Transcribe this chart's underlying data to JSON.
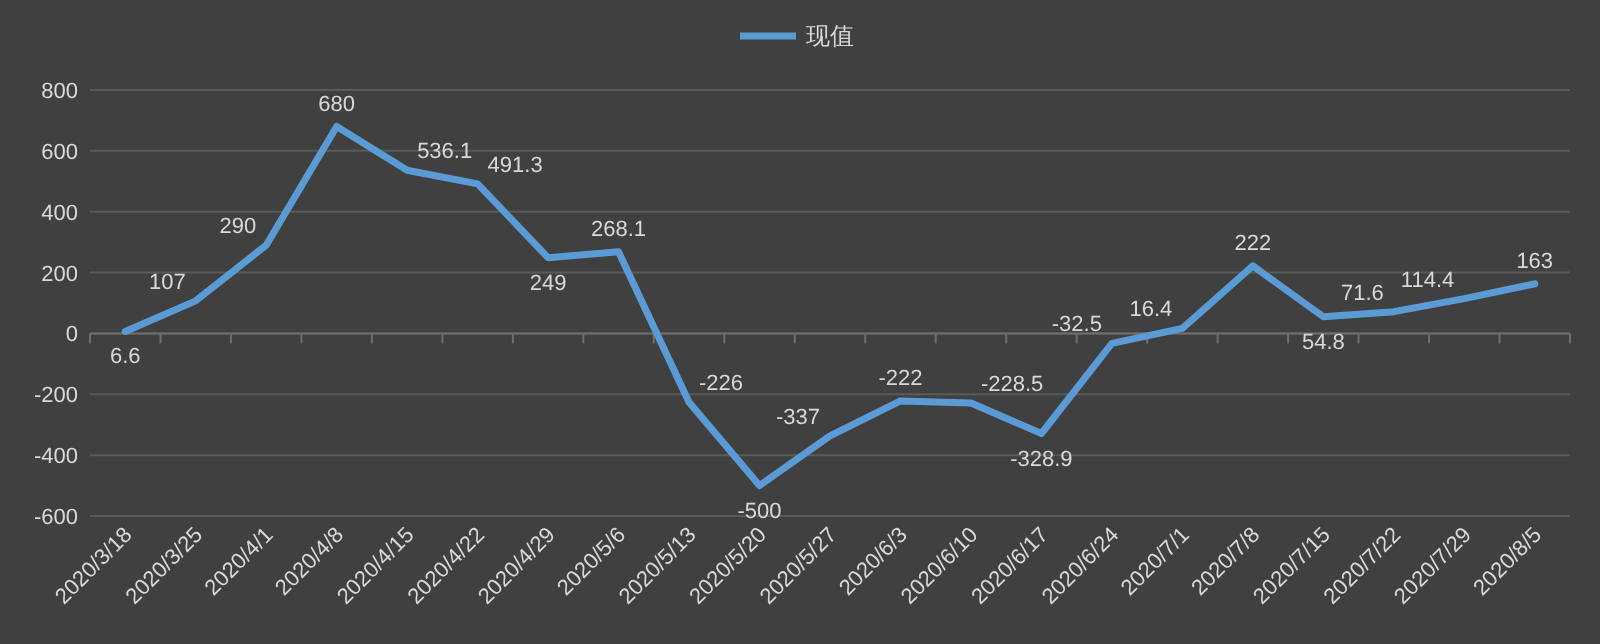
{
  "chart_data": {
    "type": "line",
    "legend": "top",
    "grid": "y",
    "data_labels": true,
    "marker": "none",
    "line_style": "solid",
    "categories": [
      "2020/3/18",
      "2020/3/25",
      "2020/4/1",
      "2020/4/8",
      "2020/4/15",
      "2020/4/22",
      "2020/4/29",
      "2020/5/6",
      "2020/5/13",
      "2020/5/20",
      "2020/5/27",
      "2020/6/3",
      "2020/6/10",
      "2020/6/17",
      "2020/6/24",
      "2020/7/1",
      "2020/7/8",
      "2020/7/15",
      "2020/7/22",
      "2020/7/29",
      "2020/8/5"
    ],
    "series": [
      {
        "name": "现值",
        "color": "#5b9bd5",
        "values": [
          6.6,
          107,
          290,
          680,
          536.1,
          491.3,
          249,
          268.1,
          -226,
          -500,
          -337,
          -222,
          -228.5,
          -328.9,
          -32.5,
          16.4,
          222,
          54.8,
          71.6,
          114.4,
          163
        ]
      }
    ],
    "ylim": [
      -600,
      800
    ],
    "yticks": [
      -600,
      -400,
      -200,
      0,
      200,
      400,
      600,
      800
    ]
  }
}
